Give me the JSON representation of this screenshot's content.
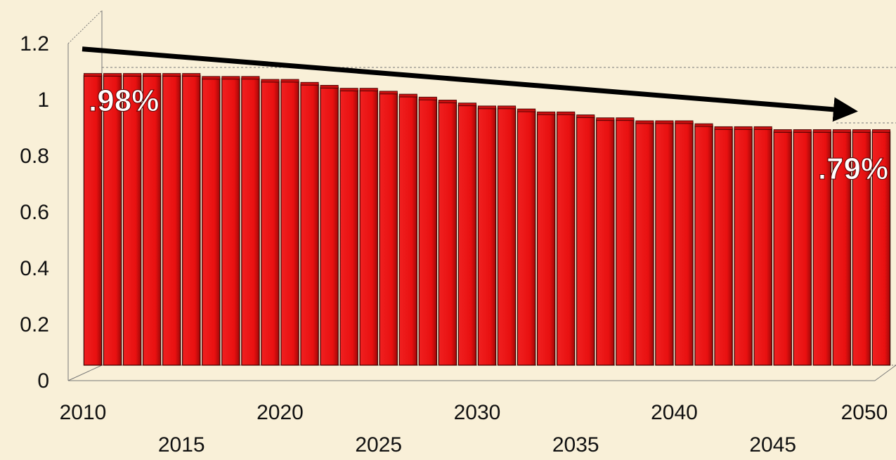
{
  "chart_data": {
    "type": "bar",
    "title": "",
    "xlabel": "",
    "ylabel": "",
    "ylim": [
      0,
      1.2
    ],
    "y_ticks": [
      "0",
      "0.2",
      "0.4",
      "0.6",
      "0.8",
      "1",
      "1.2"
    ],
    "x_tick_labels": [
      "2010",
      "2015",
      "2020",
      "2025",
      "2030",
      "2035",
      "2040",
      "2045",
      "2050"
    ],
    "categories": [
      2010,
      2011,
      2012,
      2013,
      2014,
      2015,
      2016,
      2017,
      2018,
      2019,
      2020,
      2021,
      2022,
      2023,
      2024,
      2025,
      2026,
      2027,
      2028,
      2029,
      2030,
      2031,
      2032,
      2033,
      2034,
      2035,
      2036,
      2037,
      2038,
      2039,
      2040,
      2041,
      2042,
      2043,
      2044,
      2045,
      2046,
      2047,
      2048,
      2049,
      2050
    ],
    "values": [
      0.98,
      0.98,
      0.98,
      0.98,
      0.98,
      0.98,
      0.97,
      0.97,
      0.97,
      0.96,
      0.96,
      0.95,
      0.94,
      0.93,
      0.93,
      0.92,
      0.91,
      0.9,
      0.89,
      0.88,
      0.87,
      0.87,
      0.86,
      0.85,
      0.85,
      0.84,
      0.83,
      0.83,
      0.82,
      0.82,
      0.82,
      0.81,
      0.8,
      0.8,
      0.8,
      0.79,
      0.79,
      0.79,
      0.79,
      0.79,
      0.79
    ],
    "bar_color": "#e81818",
    "grid": false,
    "trend_arrow": {
      "from": [
        2010,
        1.07
      ],
      "to": [
        2050,
        0.86
      ],
      "color": "#000000"
    },
    "annotations": [
      {
        "text": ".98%",
        "x": 2011,
        "y": 0.86
      },
      {
        "text": ".79%",
        "x": 2048,
        "y": 0.63
      }
    ]
  }
}
